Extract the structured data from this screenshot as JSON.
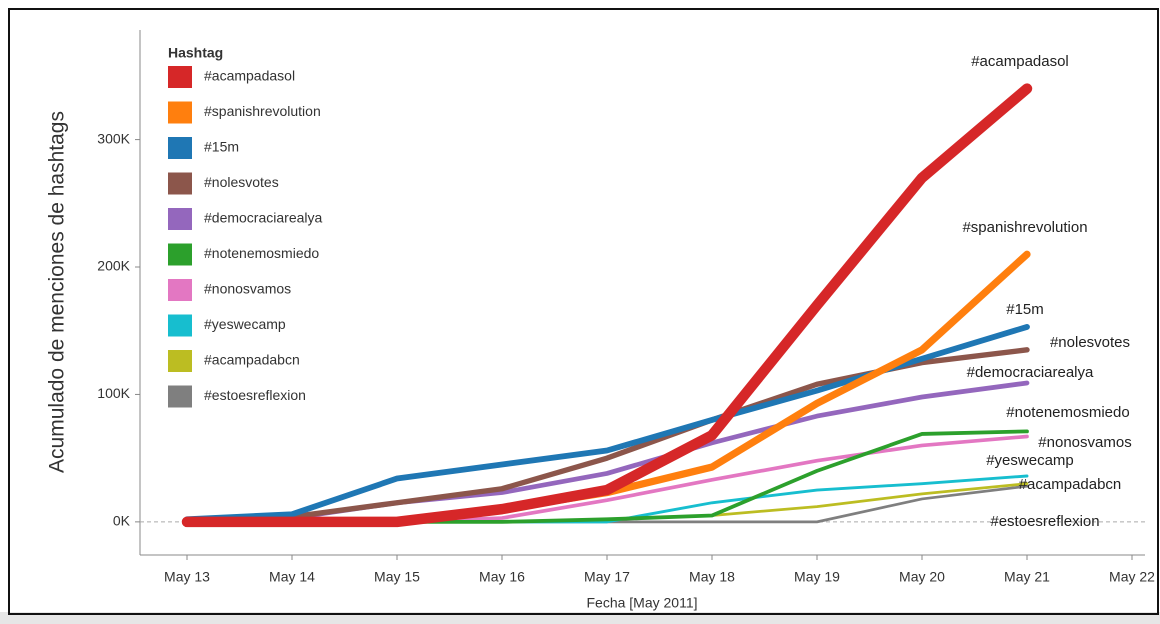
{
  "chart_data": {
    "type": "line",
    "y_label": "Acumulado de menciones de hashtags",
    "x_label": "Fecha [May 2011]",
    "legend_title": "Hashtag",
    "categories": [
      "May 13",
      "May 14",
      "May 15",
      "May 16",
      "May 17",
      "May 18",
      "May 19",
      "May 20",
      "May 21",
      "May 22"
    ],
    "ylim": [
      -26000,
      386000
    ],
    "yticks": [
      {
        "value": 0,
        "label": "0K"
      },
      {
        "value": 100000,
        "label": "100K"
      },
      {
        "value": 200000,
        "label": "200K"
      },
      {
        "value": 300000,
        "label": "300K"
      }
    ],
    "grid": false,
    "legend": "upper left",
    "series": [
      {
        "name": "#acampadasol",
        "color": "#d62728",
        "values": [
          0,
          0,
          0,
          10000,
          25000,
          68000,
          170000,
          270000,
          340000,
          null
        ]
      },
      {
        "name": "#spanishrevolution",
        "color": "#ff7f0e",
        "values": [
          0,
          0,
          0,
          10000,
          23000,
          43000,
          93000,
          135000,
          210000,
          null
        ]
      },
      {
        "name": "#15m",
        "color": "#1f77b4",
        "values": [
          2000,
          6000,
          34000,
          45000,
          56000,
          80000,
          103000,
          128000,
          153000,
          null
        ]
      },
      {
        "name": "#nolesvotes",
        "color": "#8c564b",
        "values": [
          0,
          4000,
          15000,
          26000,
          50000,
          80000,
          108000,
          125000,
          135000,
          null
        ]
      },
      {
        "name": "#democraciarealya",
        "color": "#9467bd",
        "values": [
          0,
          3000,
          15000,
          23000,
          38000,
          62000,
          83000,
          98000,
          109000,
          null
        ]
      },
      {
        "name": "#notenemosmiedo",
        "color": "#2ca02c",
        "values": [
          0,
          0,
          0,
          0,
          2000,
          5000,
          40000,
          69000,
          71000,
          null
        ]
      },
      {
        "name": "#nonosvamos",
        "color": "#e377c2",
        "values": [
          0,
          0,
          0,
          3000,
          17000,
          33000,
          48000,
          60000,
          67000,
          null
        ]
      },
      {
        "name": "#yeswecamp",
        "color": "#17becf",
        "values": [
          0,
          0,
          0,
          0,
          0,
          15000,
          25000,
          30000,
          36000,
          null
        ]
      },
      {
        "name": "#acampadabcn",
        "color": "#bcbd22",
        "values": [
          0,
          0,
          0,
          0,
          2000,
          5000,
          12000,
          22000,
          30000,
          null
        ]
      },
      {
        "name": "#estoesreflexion",
        "color": "#7f7f7f",
        "values": [
          0,
          0,
          0,
          0,
          0,
          0,
          0,
          18000,
          28000,
          null
        ]
      }
    ]
  }
}
